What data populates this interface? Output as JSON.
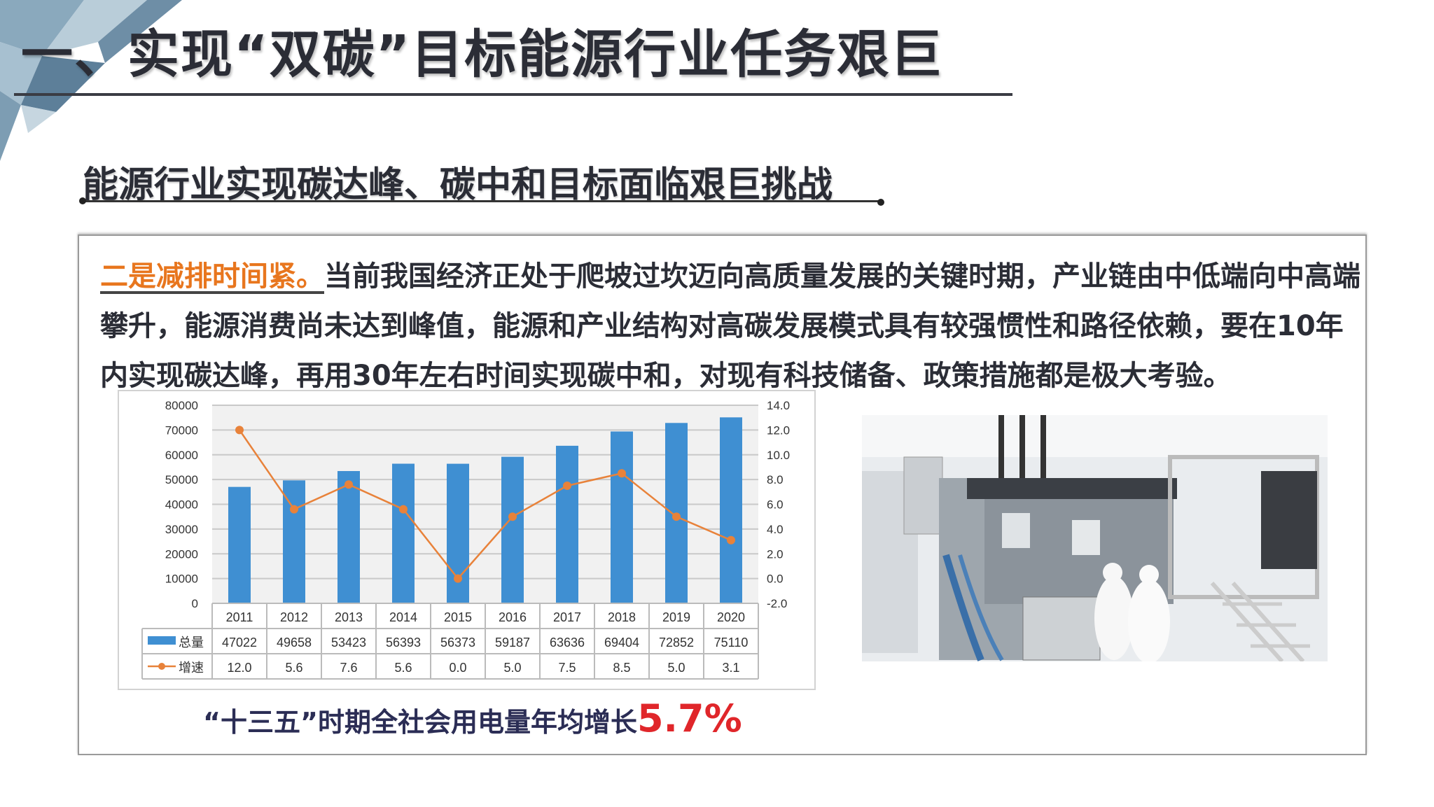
{
  "slide": {
    "title": "一、实现“双碳”目标能源行业任务艰巨",
    "subtitle": "能源行业实现碳达峰、碳中和目标面临艰巨挑战",
    "paragraph_highlight": "二是减排时间紧。",
    "paragraph_text": "当前我国经济正处于爬坡过坎迈向高质量发展的关键时期，产业链由中低端向中高端攀升，能源消费尚未达到峰值，能源和产业结构对高碳发展模式具有较强惯性和路径依赖，要在10年内实现碳达峰，再用30年左右时间实现碳中和，对现有科技储备、政策措施都是极大考验。",
    "caption_text": "“十三五”时期全社会用电量年均增长",
    "caption_value": "5.7%",
    "colors": {
      "highlight": "#e8761e",
      "caption_value": "#e0262a",
      "bar": "#3f8fd2",
      "line": "#e8823a"
    },
    "photo": "cleanroom-machinery-photo"
  },
  "chart_data": {
    "type": "bar",
    "categories": [
      "2011",
      "2012",
      "2013",
      "2014",
      "2015",
      "2016",
      "2017",
      "2018",
      "2019",
      "2020"
    ],
    "series": [
      {
        "name": "总量",
        "type": "bar",
        "axis": "left",
        "values": [
          47022,
          49658,
          53423,
          56393,
          56373,
          59187,
          63636,
          69404,
          72852,
          75110
        ]
      },
      {
        "name": "增速",
        "type": "line",
        "axis": "right",
        "values": [
          12.0,
          5.6,
          7.6,
          5.6,
          0.0,
          5.0,
          7.5,
          8.5,
          5.0,
          3.1
        ]
      }
    ],
    "left_axis": {
      "range": [
        0,
        80000
      ],
      "ticks": [
        "0",
        "10000",
        "20000",
        "30000",
        "40000",
        "50000",
        "60000",
        "70000",
        "80000"
      ]
    },
    "right_axis": {
      "range": [
        -2,
        14
      ],
      "ticks": [
        "-2.0",
        "0.0",
        "2.0",
        "4.0",
        "6.0",
        "8.0",
        "10.0",
        "12.0",
        "14.0"
      ]
    },
    "table_values": {
      "总量": [
        "47022",
        "49658",
        "53423",
        "56393",
        "56373",
        "59187",
        "63636",
        "69404",
        "72852",
        "75110"
      ],
      "增速": [
        "12.0",
        "5.6",
        "7.6",
        "5.6",
        "0.0",
        "5.0",
        "7.5",
        "8.5",
        "5.0",
        "3.1"
      ]
    },
    "grid": true,
    "legend": "data-table"
  }
}
